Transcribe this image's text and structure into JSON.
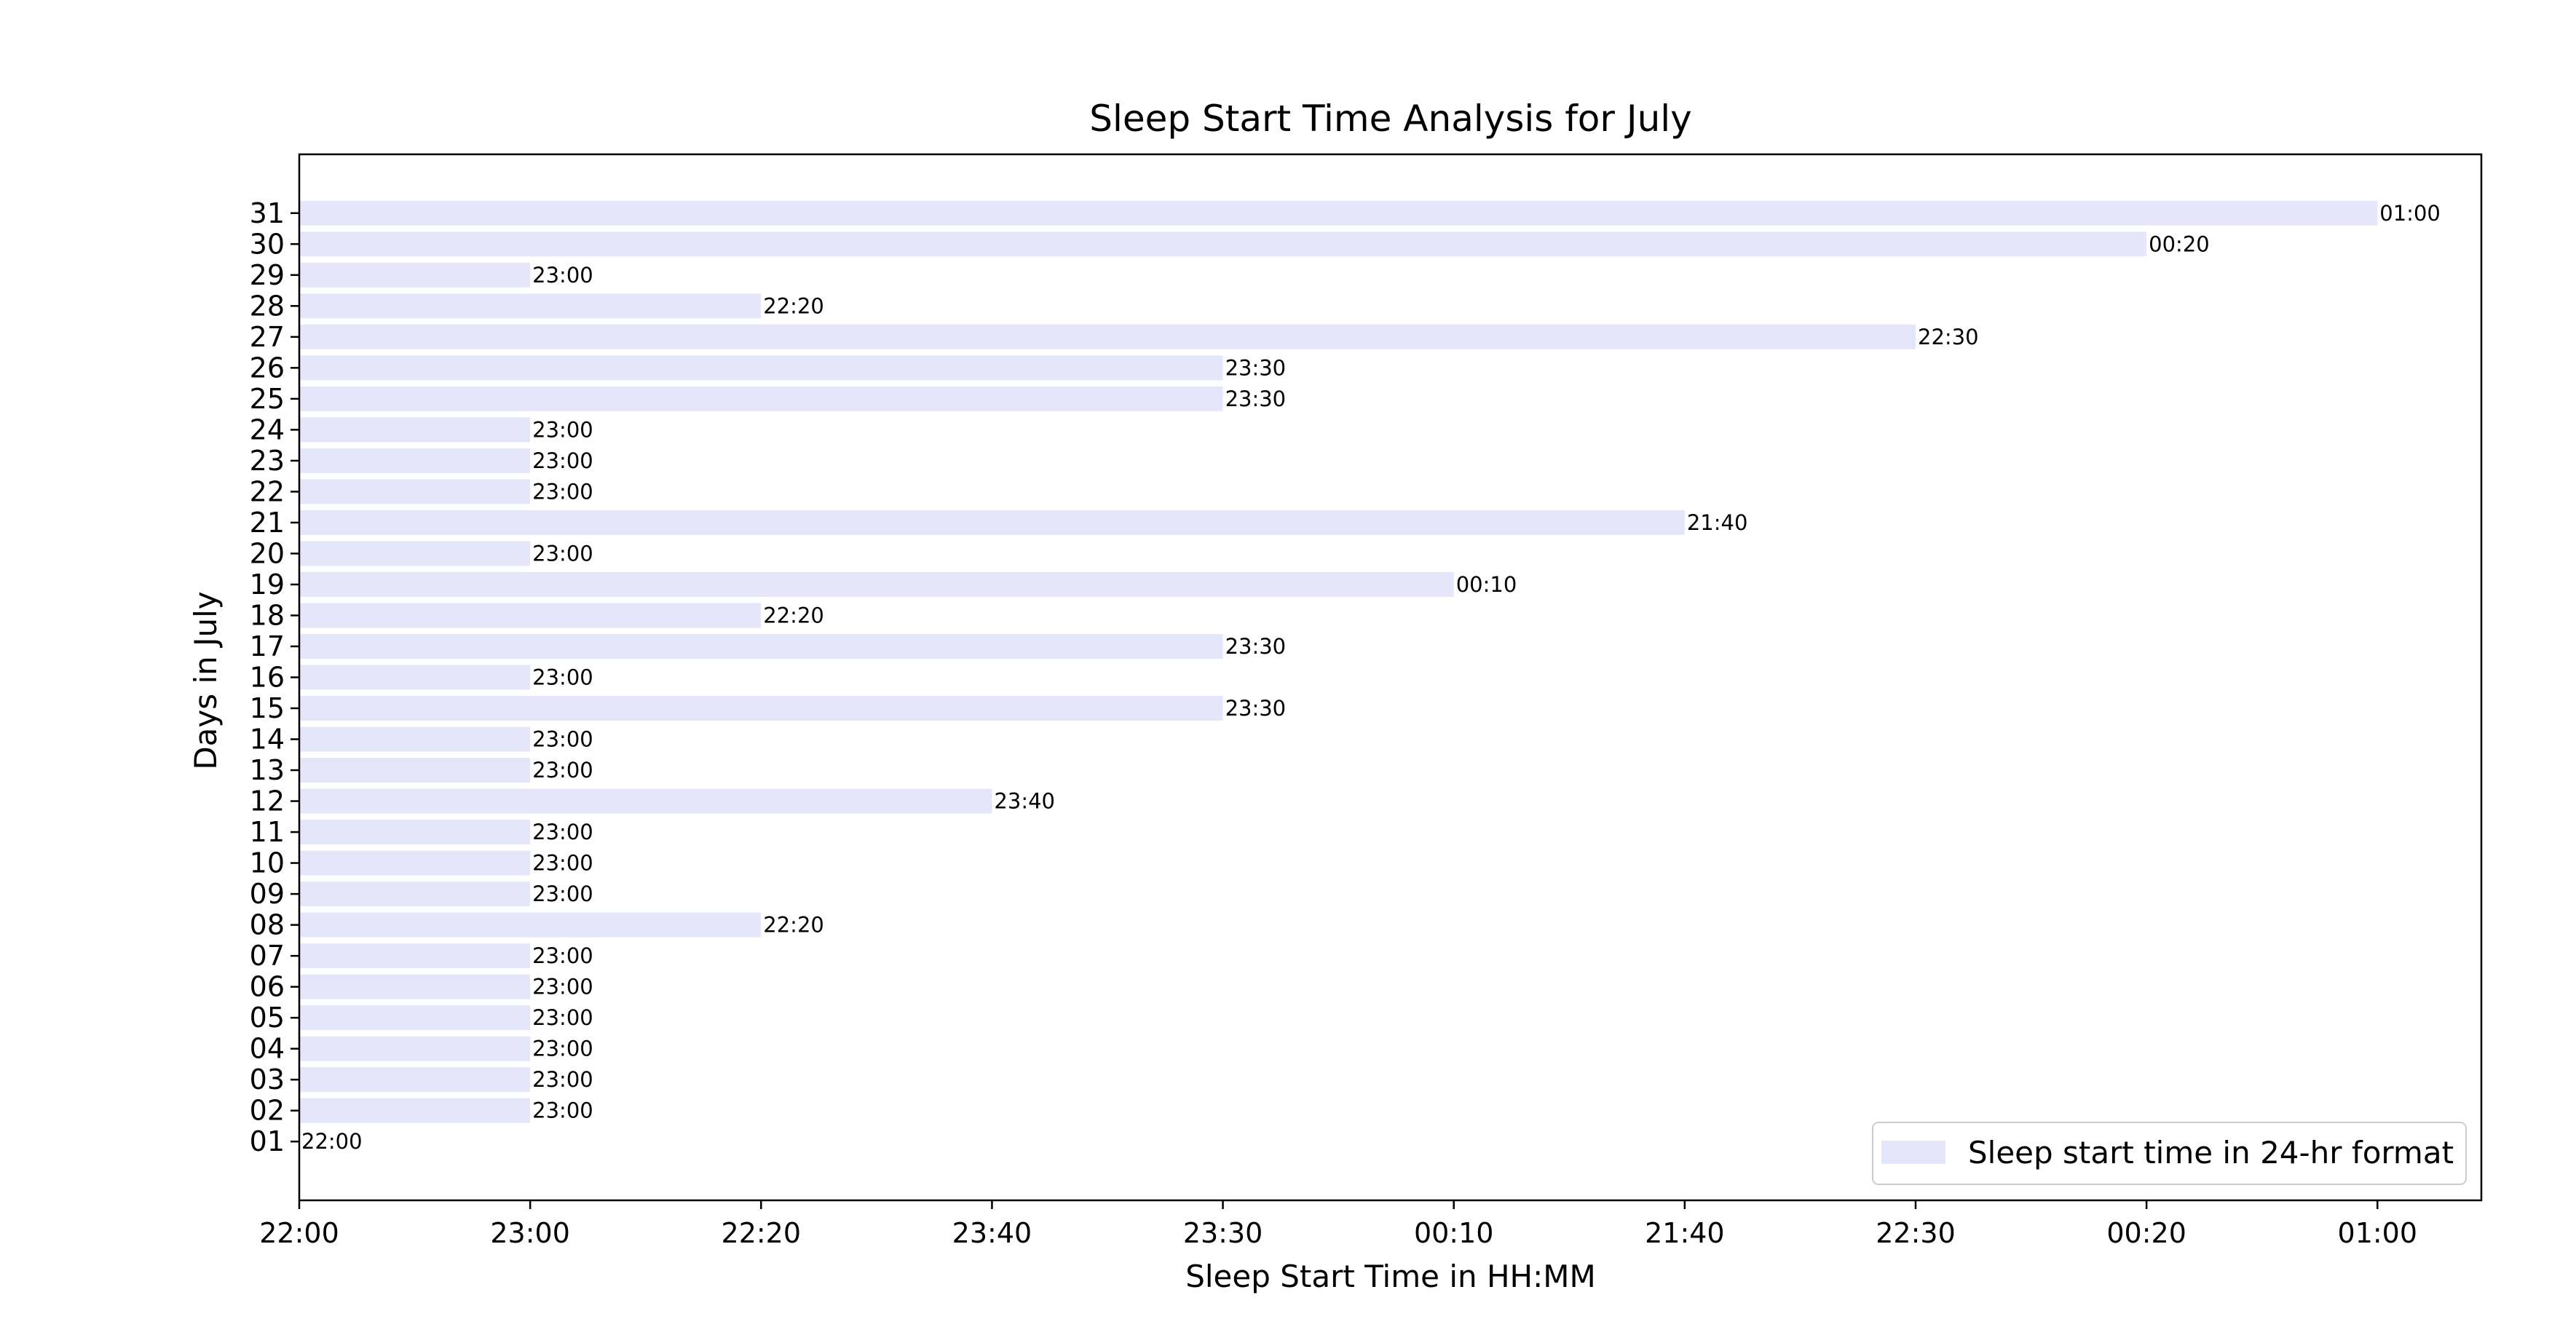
{
  "chart_data": {
    "type": "bar",
    "orientation": "horizontal",
    "title": "Sleep Start Time Analysis for July",
    "xlabel": "Sleep Start Time in HH:MM",
    "ylabel": "Days in July",
    "categories": [
      "01",
      "02",
      "03",
      "04",
      "05",
      "06",
      "07",
      "08",
      "09",
      "10",
      "11",
      "12",
      "13",
      "14",
      "15",
      "16",
      "17",
      "18",
      "19",
      "20",
      "21",
      "22",
      "23",
      "24",
      "25",
      "26",
      "27",
      "28",
      "29",
      "30",
      "31"
    ],
    "values": [
      0,
      1,
      1,
      1,
      1,
      1,
      1,
      2,
      1,
      1,
      1,
      3,
      1,
      1,
      4,
      1,
      4,
      2,
      5,
      1,
      6,
      1,
      1,
      1,
      4,
      4,
      7,
      2,
      1,
      8,
      9
    ],
    "x_ticks": [
      0,
      1,
      2,
      3,
      4,
      5,
      6,
      7,
      8,
      9
    ],
    "x_tick_labels": [
      "22:00",
      "23:00",
      "22:20",
      "23:40",
      "23:30",
      "00:10",
      "21:40",
      "22:30",
      "00:20",
      "01:00"
    ],
    "bar_labels": [
      "22:00",
      "23:00",
      "23:00",
      "23:00",
      "23:00",
      "23:00",
      "23:00",
      "22:20",
      "23:00",
      "23:00",
      "23:00",
      "23:40",
      "23:00",
      "23:00",
      "23:30",
      "23:00",
      "23:30",
      "22:20",
      "00:10",
      "23:00",
      "21:40",
      "23:00",
      "23:00",
      "23:00",
      "23:30",
      "23:30",
      "22:30",
      "22:20",
      "23:00",
      "00:20",
      "01:00"
    ],
    "xlim": [
      0,
      9.45
    ],
    "legend": {
      "label": "Sleep start time in 24-hr format",
      "placement": "lower-right"
    },
    "grid": false,
    "colors": {
      "bar": "#e6e6fa",
      "axis": "#000000"
    }
  }
}
